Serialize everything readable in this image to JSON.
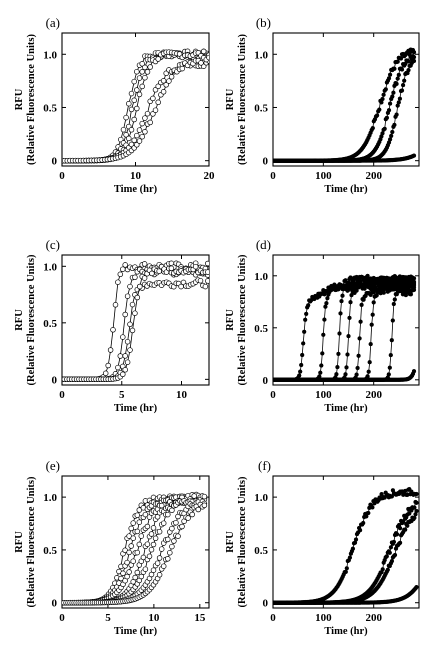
{
  "chart_data": [
    {
      "type": "scatter",
      "panel_label": "(a)",
      "xlabel": "Time (hr)",
      "ylabel": "RFU",
      "ylabel2": "(Relative Fluorescence Units)",
      "xlim": [
        0,
        20
      ],
      "ylim": [
        -0.05,
        1.2
      ],
      "xticks": [
        0,
        10,
        20
      ],
      "yticks": [
        0,
        0.5,
        1.0
      ],
      "ytick_labels": [
        "0",
        "0.5",
        "1.0"
      ],
      "marker": "open",
      "series": [
        {
          "x0": 9.0,
          "k": 1.4,
          "xmax": 20,
          "n": 55
        },
        {
          "x0": 9.6,
          "k": 1.3,
          "xmax": 20,
          "n": 55
        },
        {
          "x0": 10.2,
          "k": 1.2,
          "xmax": 20,
          "n": 55
        },
        {
          "x0": 11.6,
          "k": 0.75,
          "xmax": 20,
          "n": 55,
          "plateau": 0.92
        },
        {
          "x0": 12.6,
          "k": 0.7,
          "xmax": 20,
          "n": 55,
          "plateau": 0.96
        }
      ]
    },
    {
      "type": "scatter",
      "panel_label": "(b)",
      "xlabel": "Time (hr)",
      "ylabel": "RFU",
      "ylabel2": "(Relative Fluorescence Units)",
      "xlim": [
        0,
        290
      ],
      "ylim": [
        -0.05,
        1.2
      ],
      "xticks": [
        0,
        100,
        200
      ],
      "yticks": [
        0,
        0.5,
        1.0
      ],
      "ytick_labels": [
        "0",
        "0.5",
        "1.0"
      ],
      "marker": "dense",
      "series": [
        {
          "x0": 212,
          "k": 0.06,
          "xmax": 280,
          "n": 130,
          "plateau": 1.04
        },
        {
          "x0": 232,
          "k": 0.075,
          "xmax": 280,
          "n": 130,
          "plateau": 1.02
        },
        {
          "x0": 248,
          "k": 0.09,
          "xmax": 280,
          "n": 130,
          "plateau": 1.0
        },
        {
          "x0": 340,
          "k": 0.05,
          "xmax": 280,
          "n": 130,
          "plateau": 1.0
        }
      ]
    },
    {
      "type": "scatter",
      "panel_label": "(c)",
      "xlabel": "Time (hr)",
      "ylabel": "RFU",
      "ylabel2": "(Relative Fluorescence Units)",
      "xlim": [
        0,
        12.3
      ],
      "ylim": [
        -0.05,
        1.1
      ],
      "xticks": [
        0,
        5,
        10
      ],
      "yticks": [
        0,
        0.5,
        1.0
      ],
      "ytick_labels": [
        "0",
        "0.5",
        "1.0"
      ],
      "marker": "open",
      "series": [
        {
          "x0": 4.3,
          "k": 4.5,
          "xmax": 12.2,
          "n": 60,
          "plateau": 1.0
        },
        {
          "x0": 5.2,
          "k": 4.0,
          "xmax": 12.2,
          "n": 60,
          "plateau": 0.95
        },
        {
          "x0": 5.6,
          "k": 3.6,
          "xmax": 12.2,
          "n": 60,
          "plateau": 0.85
        },
        {
          "x0": 6.0,
          "k": 3.3,
          "xmax": 12.2,
          "n": 60,
          "plateau": 0.97
        }
      ]
    },
    {
      "type": "scatter",
      "panel_label": "(d)",
      "xlabel": "Time (hr)",
      "ylabel": "RFU",
      "ylabel2": "(Relative Fluorescence Units)",
      "xlim": [
        0,
        290
      ],
      "ylim": [
        -0.05,
        1.2
      ],
      "xticks": [
        0,
        100,
        200
      ],
      "yticks": [
        0,
        0.5,
        1.0
      ],
      "ytick_labels": [
        "0",
        "0.5",
        "1.0"
      ],
      "marker": "dense",
      "series": [
        {
          "x0": 60,
          "k": 0.35,
          "xmax": 280,
          "n": 140,
          "plateau": 0.72,
          "rise": 0.18
        },
        {
          "x0": 100,
          "k": 0.4,
          "xmax": 280,
          "n": 140,
          "plateau": 0.82,
          "rise": 0.15
        },
        {
          "x0": 132,
          "k": 0.45,
          "xmax": 280,
          "n": 140,
          "plateau": 0.86,
          "rise": 0.1
        },
        {
          "x0": 150,
          "k": 0.45,
          "xmax": 280,
          "n": 140,
          "plateau": 0.84,
          "rise": 0.12
        },
        {
          "x0": 172,
          "k": 0.45,
          "xmax": 280,
          "n": 140,
          "plateau": 0.8,
          "rise": 0.12
        },
        {
          "x0": 195,
          "k": 0.45,
          "xmax": 280,
          "n": 140,
          "plateau": 0.82,
          "rise": 0.1
        },
        {
          "x0": 236,
          "k": 0.45,
          "xmax": 280,
          "n": 140,
          "plateau": 0.82,
          "rise": 0.05
        },
        {
          "x0": 292,
          "k": 0.2,
          "xmax": 280,
          "n": 140,
          "plateau": 1.0
        }
      ]
    },
    {
      "type": "scatter",
      "panel_label": "(e)",
      "xlabel": "Time (hr)",
      "ylabel": "RFU",
      "ylabel2": "(Relative Fluorescence Units)",
      "xlim": [
        0,
        16
      ],
      "ylim": [
        -0.05,
        1.2
      ],
      "xticks": [
        0,
        5,
        10,
        15
      ],
      "yticks": [
        0,
        0.5,
        1.0
      ],
      "ytick_labels": [
        "0",
        "0.5",
        "1.0"
      ],
      "marker": "open",
      "series": [
        {
          "x0": 6.8,
          "k": 1.4,
          "xmax": 15.5,
          "n": 70,
          "plateau": 0.98
        },
        {
          "x0": 7.4,
          "k": 1.2,
          "xmax": 15.5,
          "n": 70,
          "plateau": 0.97
        },
        {
          "x0": 8.2,
          "k": 1.0,
          "xmax": 15.5,
          "n": 70,
          "plateau": 1.0
        },
        {
          "x0": 9.0,
          "k": 1.1,
          "xmax": 15.5,
          "n": 70,
          "plateau": 0.98
        },
        {
          "x0": 9.8,
          "k": 0.95,
          "xmax": 15.5,
          "n": 70,
          "plateau": 1.0
        },
        {
          "x0": 10.8,
          "k": 0.9,
          "xmax": 15.5,
          "n": 70,
          "plateau": 0.96
        },
        {
          "x0": 11.8,
          "k": 0.85,
          "xmax": 15.5,
          "n": 70,
          "plateau": 0.98
        }
      ]
    },
    {
      "type": "scatter",
      "panel_label": "(f)",
      "xlabel": "Time (hr)",
      "ylabel": "RFU",
      "ylabel2": "(Relative Fluorescence Units)",
      "xlim": [
        0,
        290
      ],
      "ylim": [
        -0.05,
        1.2
      ],
      "xticks": [
        0,
        100,
        200
      ],
      "yticks": [
        0,
        0.5,
        1.0
      ],
      "ytick_labels": [
        "0",
        "0.5",
        "1.0"
      ],
      "marker": "dense",
      "series": [
        {
          "x0": 160,
          "k": 0.055,
          "xmax": 285,
          "n": 140,
          "plateau": 1.05
        },
        {
          "x0": 232,
          "k": 0.05,
          "xmax": 285,
          "n": 140,
          "plateau": 1.0
        },
        {
          "x0": 242,
          "k": 0.05,
          "xmax": 285,
          "n": 140,
          "plateau": 0.95
        },
        {
          "x0": 320,
          "k": 0.05,
          "xmax": 285,
          "n": 140,
          "plateau": 1.0
        }
      ]
    }
  ]
}
